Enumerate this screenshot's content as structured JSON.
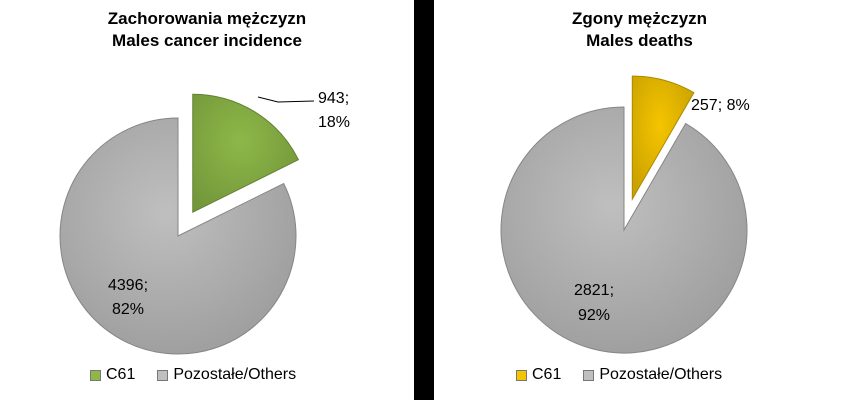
{
  "chart_data": [
    {
      "type": "pie",
      "title": "Zachorowania mężczyzn",
      "subtitle": "Males cancer incidence",
      "slices": [
        {
          "label": "C61",
          "value": 943,
          "percent": 18,
          "data_label": "943;",
          "data_label_2": "18%",
          "color": "#8DB848",
          "exploded": true
        },
        {
          "label": "Pozostałe/Others",
          "value": 4396,
          "percent": 82,
          "data_label": "4396;",
          "data_label_2": "82%",
          "color": "#BFBFBF",
          "exploded": false
        }
      ],
      "legend": "bottom"
    },
    {
      "type": "pie",
      "title": "Zgony mężczyzn",
      "subtitle": "Males deaths",
      "slices": [
        {
          "label": "C61",
          "value": 257,
          "percent": 8,
          "data_label": "257; 8%",
          "data_label_2": "",
          "color": "#F5C400",
          "exploded": true
        },
        {
          "label": "Pozostałe/Others",
          "value": 2821,
          "percent": 92,
          "data_label": "2821;",
          "data_label_2": "92%",
          "color": "#BFBFBF",
          "exploded": false
        }
      ],
      "legend": "bottom"
    }
  ]
}
